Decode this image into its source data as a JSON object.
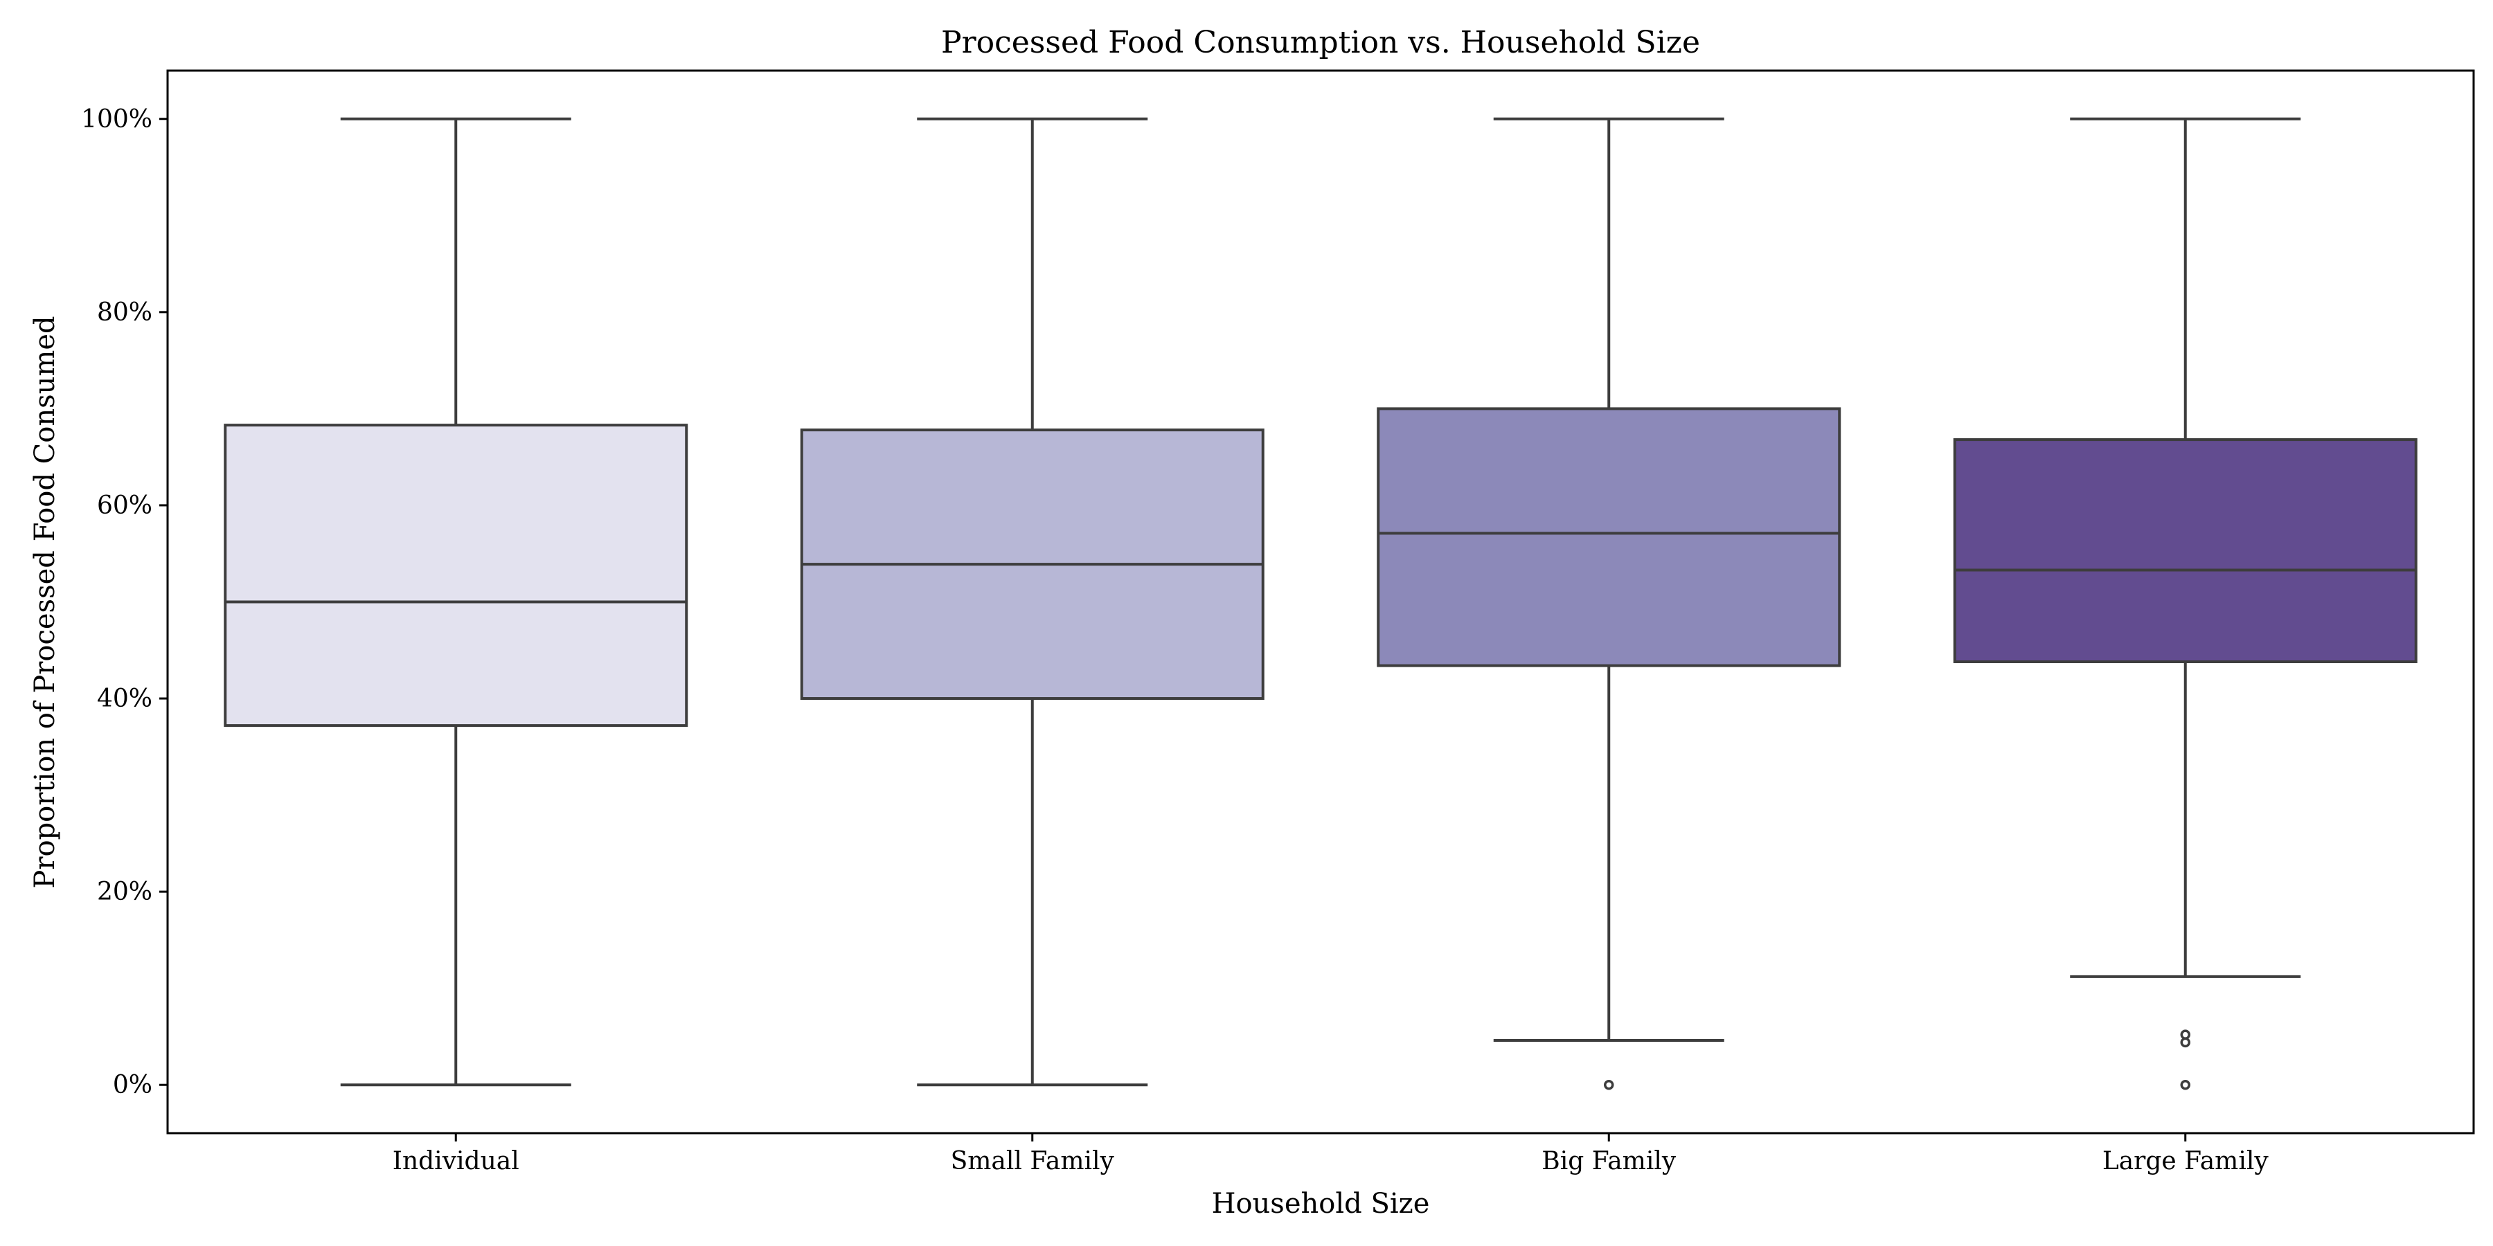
{
  "chart_data": {
    "type": "box",
    "title": "Processed Food Consumption vs. Household Size",
    "xlabel": "Household Size",
    "ylabel": "Proportion of Processed Food Consumed",
    "ylim": [
      -0.05,
      1.05
    ],
    "yticks": [
      0,
      0.2,
      0.4,
      0.6,
      0.8,
      1.0
    ],
    "ytick_labels": [
      "0%",
      "20%",
      "40%",
      "60%",
      "80%",
      "100%"
    ],
    "grid": false,
    "legend": "none",
    "categories": [
      "Individual",
      "Small Family",
      "Big Family",
      "Large Family"
    ],
    "boxes": [
      {
        "category": "Individual",
        "whisker_low": 0.0,
        "q1": 0.372,
        "median": 0.5,
        "q3": 0.683,
        "whisker_high": 1.0,
        "outliers": [],
        "color": "#e3e2ef"
      },
      {
        "category": "Small Family",
        "whisker_low": 0.0,
        "q1": 0.4,
        "median": 0.539,
        "q3": 0.678,
        "whisker_high": 1.0,
        "outliers": [],
        "color": "#b7b7d6"
      },
      {
        "category": "Big Family",
        "whisker_low": 0.046,
        "q1": 0.434,
        "median": 0.571,
        "q3": 0.7,
        "whisker_high": 1.0,
        "outliers": [
          0.0
        ],
        "color": "#8c89b9"
      },
      {
        "category": "Large Family",
        "whisker_low": 0.112,
        "q1": 0.438,
        "median": 0.533,
        "q3": 0.668,
        "whisker_high": 1.0,
        "outliers": [
          0.052,
          0.044,
          0.0
        ],
        "color": "#624c90"
      }
    ]
  }
}
